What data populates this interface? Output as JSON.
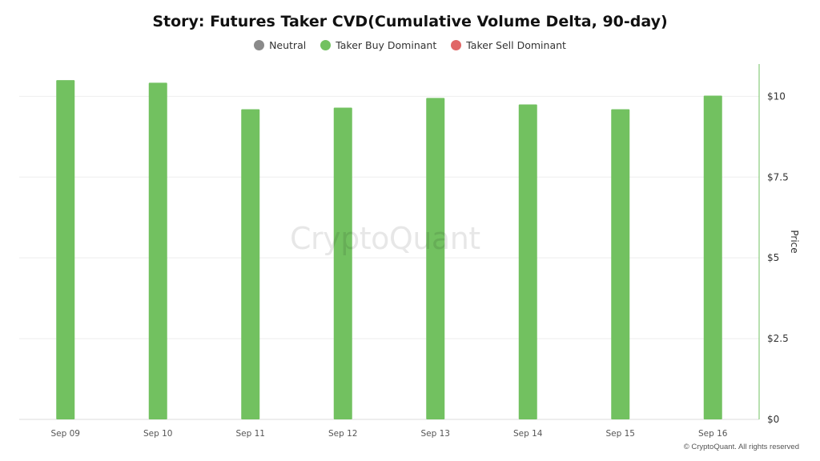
{
  "chart_data": {
    "type": "bar",
    "title": "Story: Futures Taker CVD(Cumulative Volume Delta, 90-day)",
    "categories": [
      "Sep 09",
      "Sep 10",
      "Sep 11",
      "Sep 12",
      "Sep 13",
      "Sep 14",
      "Sep 15",
      "Sep 16"
    ],
    "series": [
      {
        "name": "Taker Buy Dominant",
        "color": "#72c160",
        "values": [
          10.5,
          10.42,
          9.6,
          9.65,
          9.95,
          9.75,
          9.6,
          10.02
        ]
      }
    ],
    "legend": [
      {
        "label": "Neutral",
        "color": "#8a8a8a"
      },
      {
        "label": "Taker Buy Dominant",
        "color": "#72c160"
      },
      {
        "label": "Taker Sell Dominant",
        "color": "#e06666"
      }
    ],
    "legend_position": "top-center",
    "ylabel": "Price",
    "ylim": [
      0,
      11
    ],
    "y_axis_side": "right",
    "yticks": [
      0,
      2.5,
      5,
      7.5,
      10
    ],
    "ytick_labels": [
      "$0",
      "$2.5",
      "$5",
      "$7.5",
      "$10"
    ],
    "grid": true
  },
  "watermark": "CryptoQuant",
  "copyright": "© CryptoQuant. All rights reserved"
}
